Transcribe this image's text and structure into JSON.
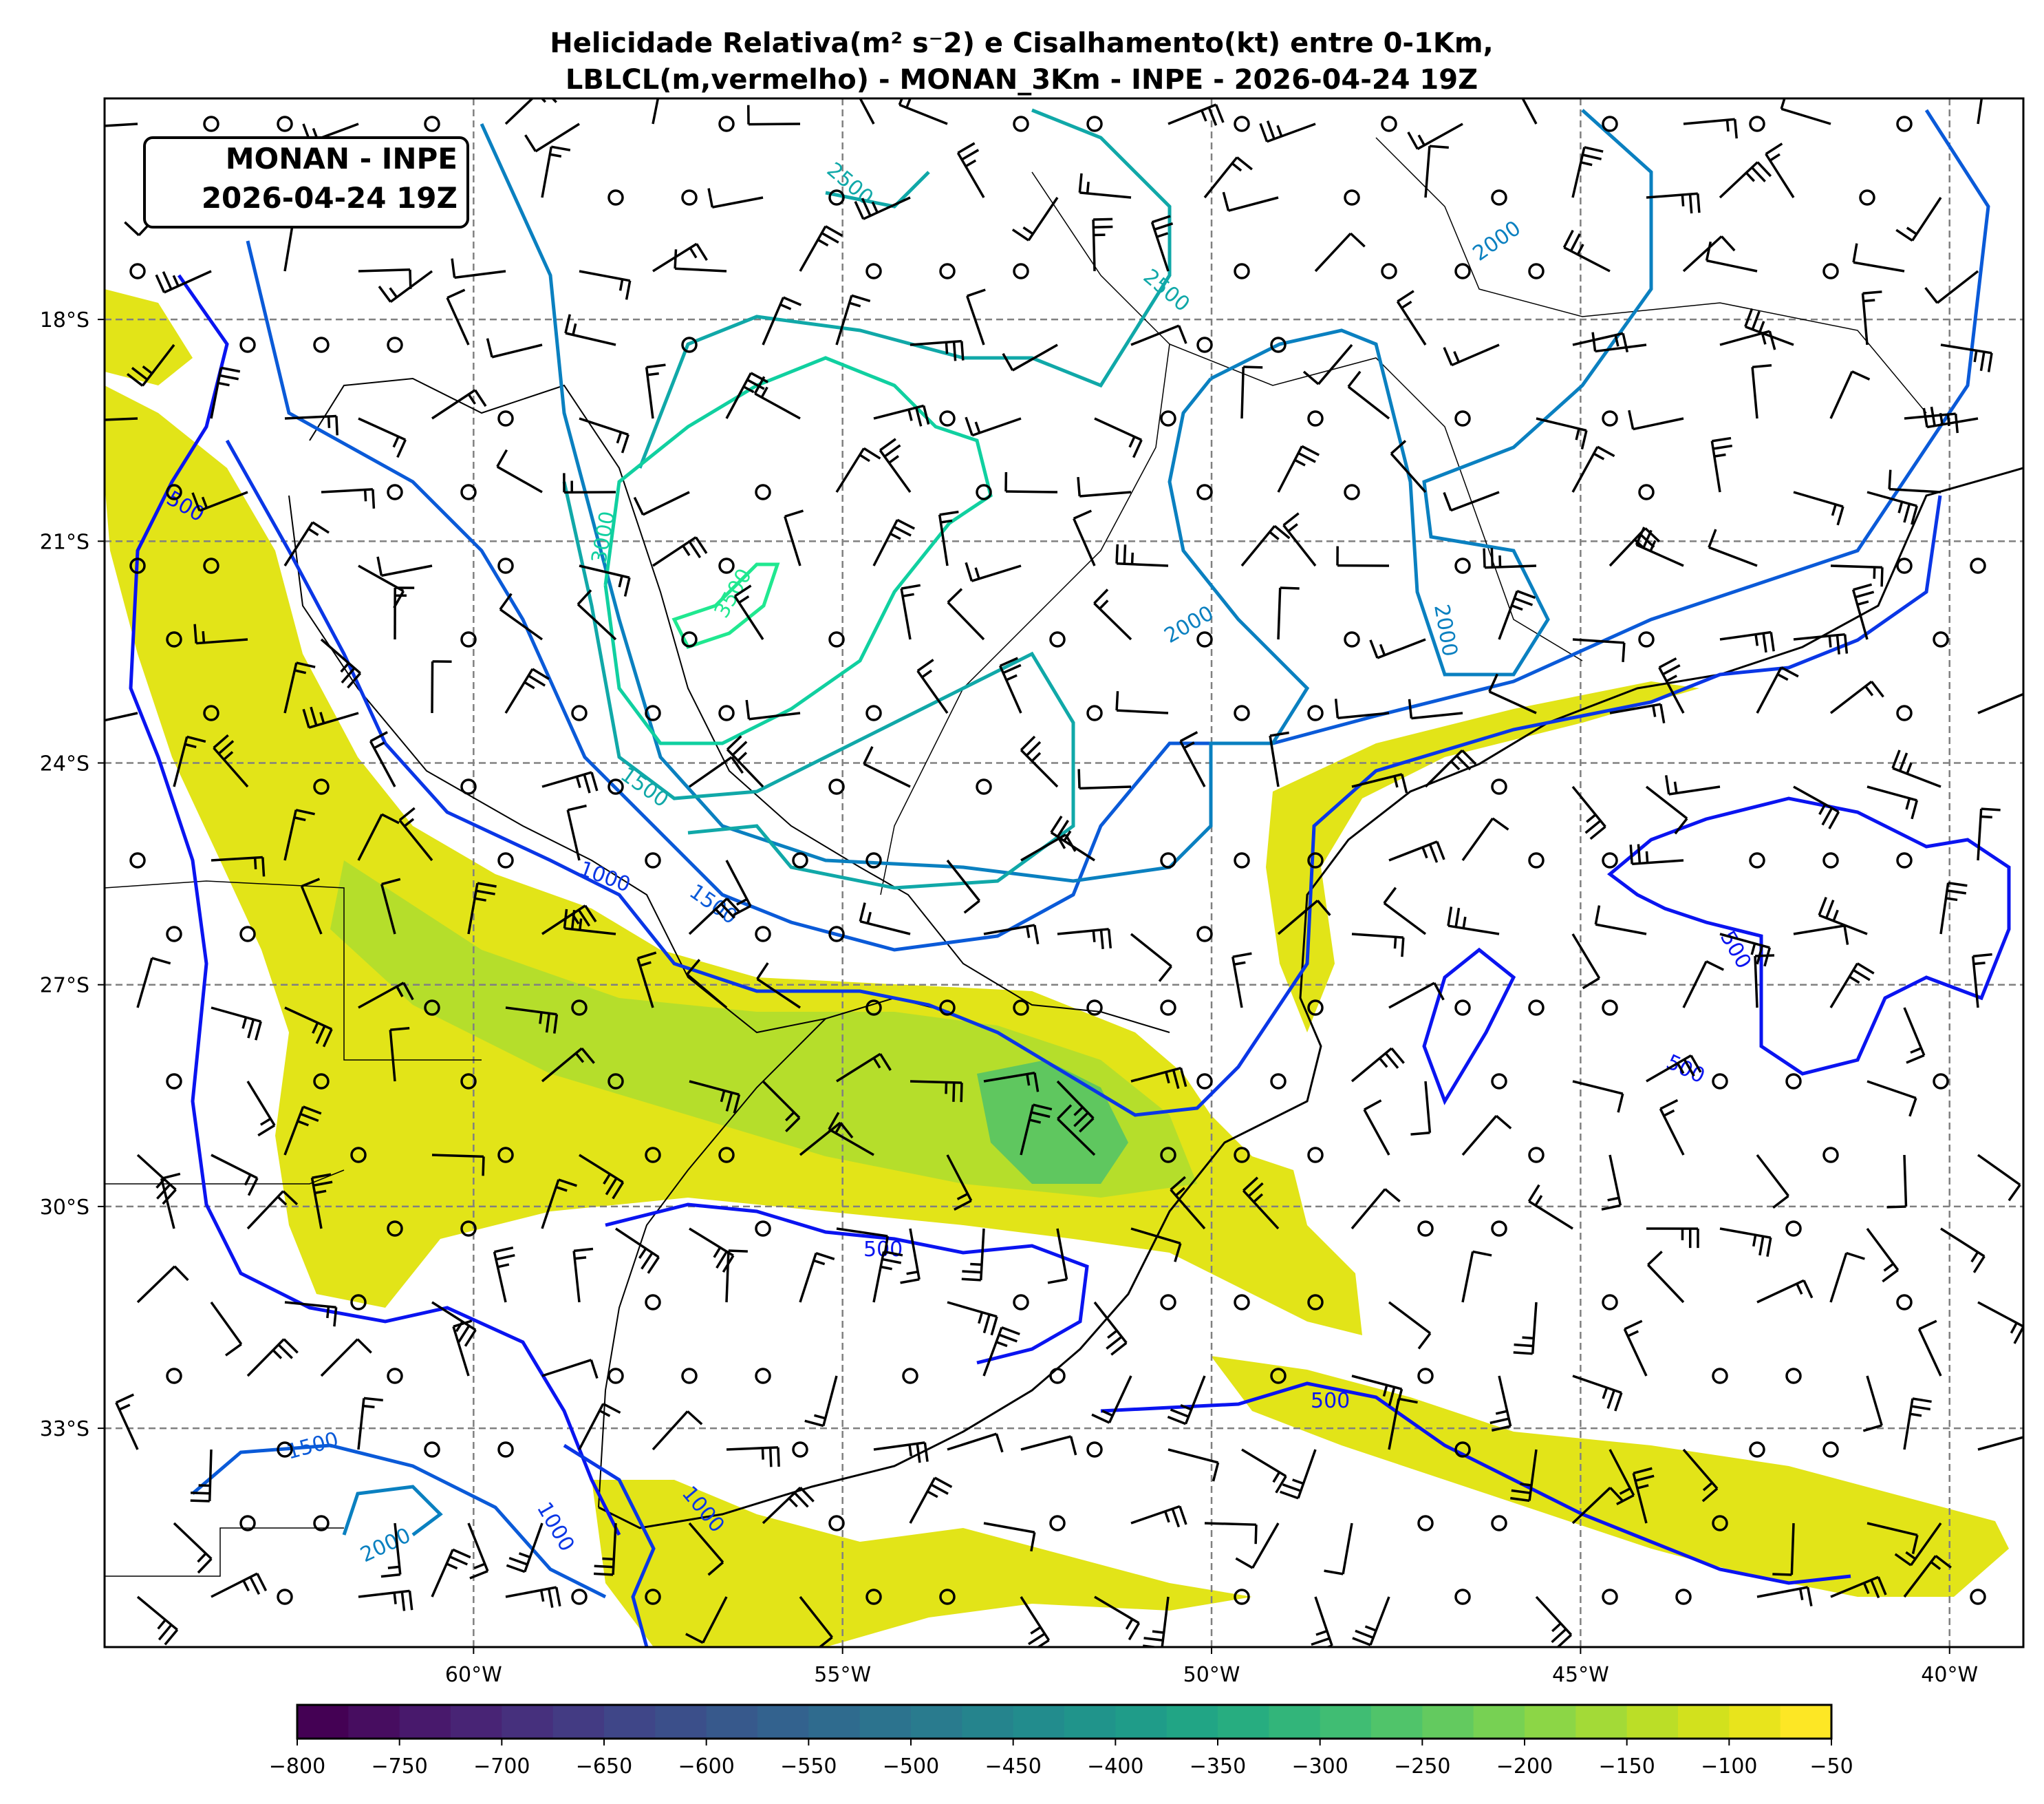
{
  "title": {
    "line1": "Helicidade Relativa(m² s⁻2) e Cisalhamento(kt) entre 0-1Km,",
    "line2": "LBLCL(m,vermelho) - MONAN_3Km - INPE - 2026-04-24 19Z"
  },
  "info_box": {
    "line1": "MONAN - INPE",
    "line2": "2026-04-24 19Z"
  },
  "map": {
    "extent_lon": [
      -65.0,
      -39.0
    ],
    "extent_lat": [
      -35.96,
      -14.47
    ],
    "lon_ticks": [
      {
        "value": -60,
        "label": "60°W"
      },
      {
        "value": -55,
        "label": "55°W"
      },
      {
        "value": -50,
        "label": "50°W"
      },
      {
        "value": -45,
        "label": "45°W"
      },
      {
        "value": -40,
        "label": "40°W"
      }
    ],
    "lat_ticks": [
      {
        "value": -18,
        "label": "18°S"
      },
      {
        "value": -21,
        "label": "21°S"
      },
      {
        "value": -24,
        "label": "24°S"
      },
      {
        "value": -27,
        "label": "27°S"
      },
      {
        "value": -30,
        "label": "30°S"
      },
      {
        "value": -33,
        "label": "33°S"
      }
    ],
    "gridlines": true,
    "shaded_field": "helicity",
    "contour_field": "LBLCL",
    "contour_labels": [
      "500",
      "500",
      "500",
      "500",
      "500",
      "1000",
      "1000",
      "1000",
      "1500",
      "1500",
      "1500",
      "2000",
      "2000",
      "2000",
      "2000",
      "2500",
      "2500",
      "3000",
      "3500"
    ],
    "wind": "shear barbs (kt)"
  },
  "colorbar": {
    "colormap": "viridis",
    "min": -800,
    "max": -50,
    "step": 25,
    "tick_labels": [
      "−800",
      "−750",
      "−700",
      "−650",
      "−600",
      "−550",
      "−500",
      "−450",
      "−400",
      "−350",
      "−300",
      "−250",
      "−200",
      "−150",
      "−100",
      "−50"
    ]
  },
  "colors": {
    "shade_light": "#e2e418",
    "shade_mid": "#b5de2b",
    "shade_core": "#4ac16d",
    "contour_low": "#0a14f0",
    "contour_mid": "#0a5ad8",
    "contour_high": "#00a0a8",
    "contour_top": "#20e890"
  }
}
